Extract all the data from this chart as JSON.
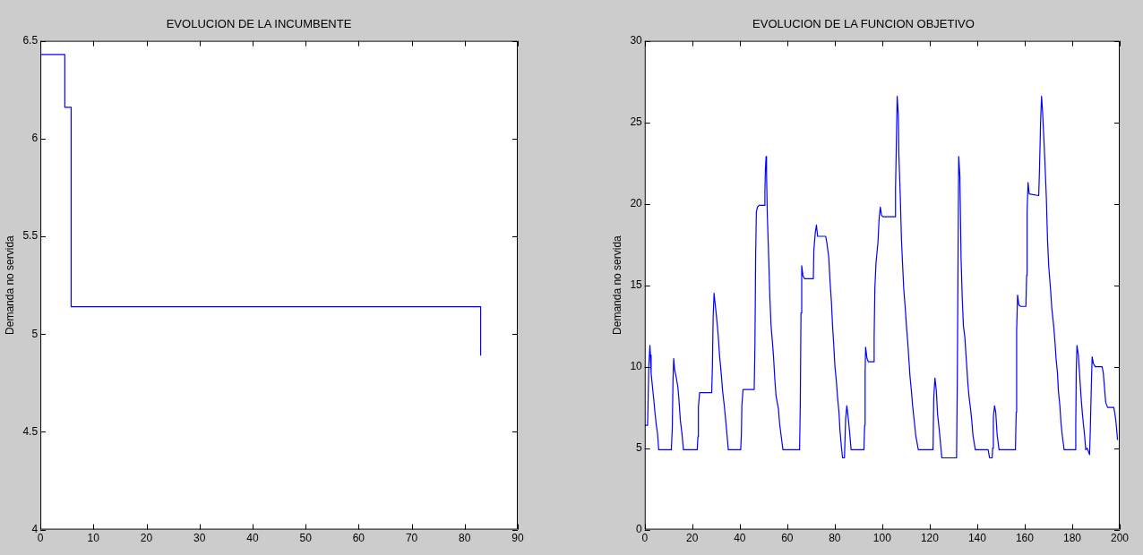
{
  "chart_data": [
    {
      "type": "step",
      "title": "EVOLUCION DE LA INCUMBENTE",
      "ylabel": "Demanda no servida",
      "x": [
        0,
        4.6,
        5.8,
        83
      ],
      "series": [
        {
          "color": "#0000ff",
          "values": [
            6.43,
            6.16,
            5.14,
            4.89
          ]
        }
      ],
      "xlim": [
        0,
        90
      ],
      "xticks": [
        0,
        10,
        20,
        30,
        40,
        50,
        60,
        70,
        80,
        90
      ],
      "ylim": [
        4,
        6.5
      ],
      "yticks": [
        4,
        4.5,
        5,
        5.5,
        6,
        6.5
      ],
      "grid": false,
      "legend": false
    },
    {
      "type": "line",
      "title": "EVOLUCION DE LA FUNCION OBJETIVO",
      "ylabel": "Demanda no servida",
      "x": [
        0,
        1.2,
        1.4,
        1.7,
        2.2,
        2.4,
        2.7,
        3.3,
        3.8,
        4.3,
        4.8,
        5.4,
        5.9,
        11.2,
        11.6,
        11.9,
        12.2,
        12.6,
        13.2,
        14,
        14.5,
        15,
        15.6,
        16.3,
        22.1,
        22.4,
        22.6,
        23.1,
        28.2,
        28.5,
        28.8,
        29.2,
        29.7,
        30.2,
        30.9,
        31.5,
        32.2,
        32.8,
        33.5,
        34.1,
        34.6,
        35.2,
        40.4,
        40.7,
        40.9,
        41.4,
        46.1,
        46.4,
        46.7,
        47,
        47.5,
        48.2,
        50.3,
        50.6,
        50.8,
        51.1,
        51.3,
        51.6,
        52.2,
        52.7,
        53.2,
        53.6,
        54.2,
        54.8,
        55.3,
        55.8,
        56.3,
        56.8,
        57.4,
        58.2,
        65.2,
        65.5,
        65.8,
        66.1,
        66.6,
        67.3,
        71,
        71.2,
        71.8,
        72.3,
        72.8,
        76.2,
        76.7,
        77.5,
        78,
        78.6,
        79.1,
        79.6,
        80.1,
        80.7,
        81.2,
        81.8,
        82.2,
        82.8,
        83.3,
        84.1,
        84.6,
        85.1,
        85.6,
        86.2,
        86.9,
        92.3,
        92.6,
        92.8,
        93,
        93.6,
        94.2,
        96.3,
        96.6,
        96.9,
        97.4,
        98.2,
        98.7,
        99.2,
        99.7,
        100.3,
        105.4,
        105.6,
        105.9,
        106.3,
        106.8,
        107,
        107.6,
        108.1,
        108.6,
        109.1,
        109.7,
        110.2,
        110.7,
        111.2,
        111.7,
        112.3,
        112.8,
        113.6,
        114.1,
        115.2,
        121.4,
        121.7,
        122.2,
        122.8,
        123.3,
        124.1,
        125.1,
        131.3,
        131.6,
        132,
        132.2,
        132.7,
        133.2,
        133.7,
        134.2,
        134.8,
        135.6,
        136.1,
        136.6,
        137.2,
        137.7,
        138.2,
        139.2,
        144.6,
        145.2,
        146.3,
        146.5,
        146.8,
        147.3,
        147.8,
        148.4,
        149.2,
        156.1,
        156.4,
        156.6,
        157,
        157.5,
        158.3,
        160.5,
        160.8,
        161,
        161.4,
        161.9,
        165.9,
        166.2,
        166.7,
        167.1,
        167.5,
        168,
        168.5,
        169.1,
        169.6,
        170.1,
        170.9,
        171.4,
        172.2,
        172.7,
        173.2,
        173.8,
        174.2,
        174.8,
        175.3,
        175.8,
        176.6,
        181.2,
        181.5,
        181.7,
        182,
        182.6,
        183.3,
        183.8,
        184.3,
        184.7,
        185.2,
        185.7,
        186.3,
        187.3,
        187.6,
        188.1,
        188.4,
        188.9,
        189.7,
        192.6,
        193.1,
        193.6,
        194.1,
        194.9,
        197.5,
        198,
        198.5,
        199.1
      ],
      "series": [
        {
          "color": "#0000ff",
          "values": [
            6.4,
            6.4,
            7.7,
            10,
            11.3,
            10.7,
            9.6,
            8.7,
            8,
            7.2,
            6.5,
            5.9,
            4.9,
            4.9,
            6.2,
            9.1,
            10.5,
            9.8,
            9.4,
            8.7,
            7.8,
            6.7,
            6,
            4.9,
            4.9,
            5.7,
            7.5,
            8.4,
            8.4,
            10,
            13,
            14.5,
            13.8,
            13.1,
            12,
            10.7,
            9.6,
            8.5,
            7.6,
            6.7,
            5.9,
            4.9,
            4.9,
            5.8,
            7.6,
            8.6,
            8.6,
            11.3,
            16.7,
            19.5,
            19.8,
            19.9,
            19.9,
            20.7,
            22.1,
            22.9,
            21.8,
            19.4,
            16.7,
            14.2,
            12.5,
            11.8,
            10.7,
            9.2,
            8.2,
            7.8,
            7.4,
            6.5,
            5.8,
            4.9,
            4.9,
            7.7,
            13.3,
            16.2,
            15.6,
            15.4,
            15.4,
            17.1,
            18.2,
            18.7,
            18,
            18,
            17.6,
            16.7,
            15.3,
            14,
            12.5,
            11.3,
            10,
            9.1,
            8.1,
            7.2,
            6.1,
            5.1,
            4.4,
            4.4,
            6.8,
            7.6,
            7,
            6.1,
            4.9,
            4.9,
            6.4,
            9.6,
            11.2,
            10.5,
            10.3,
            10.3,
            11.8,
            14.8,
            16.4,
            17.6,
            19.1,
            19.8,
            19.3,
            19.2,
            19.2,
            20.9,
            23.3,
            26.6,
            25.4,
            23.1,
            20.5,
            17.8,
            16.2,
            14.7,
            13.6,
            12.5,
            11.6,
            10.5,
            9.4,
            8.5,
            7.6,
            6.5,
            5.8,
            4.9,
            4.9,
            8.1,
            9.3,
            8.5,
            7.1,
            6,
            4.4,
            4.4,
            8.9,
            18.2,
            22.9,
            21.7,
            16.7,
            14.2,
            12.5,
            11.8,
            10,
            8.9,
            8.1,
            7.4,
            6.7,
            5.8,
            4.9,
            4.9,
            4.4,
            4.4,
            5,
            6.9,
            7.6,
            7.2,
            5.8,
            4.9,
            4.9,
            7.2,
            12.2,
            14.4,
            13.8,
            13.7,
            13.7,
            15.6,
            19.5,
            21.3,
            20.6,
            20.5,
            22,
            25.1,
            26.6,
            25.7,
            24.2,
            22.6,
            20.4,
            17.8,
            16.2,
            14.7,
            13.6,
            12.5,
            11.6,
            10.5,
            9.6,
            8.5,
            7.6,
            6.5,
            5.8,
            4.9,
            4.9,
            6.4,
            9.7,
            11.3,
            10.7,
            9.1,
            8,
            7.1,
            6.5,
            5.8,
            4.9,
            5,
            4.6,
            6,
            9.1,
            10.6,
            10.2,
            10,
            10,
            9.6,
            8.7,
            7.8,
            7.5,
            7.5,
            7.1,
            6.5,
            5.5
          ]
        }
      ],
      "xlim": [
        0,
        200
      ],
      "xticks": [
        0,
        20,
        40,
        60,
        80,
        100,
        120,
        140,
        160,
        180,
        200
      ],
      "ylim": [
        0,
        30
      ],
      "yticks": [
        0,
        5,
        10,
        15,
        20,
        25,
        30
      ],
      "grid": false,
      "legend": false
    }
  ]
}
